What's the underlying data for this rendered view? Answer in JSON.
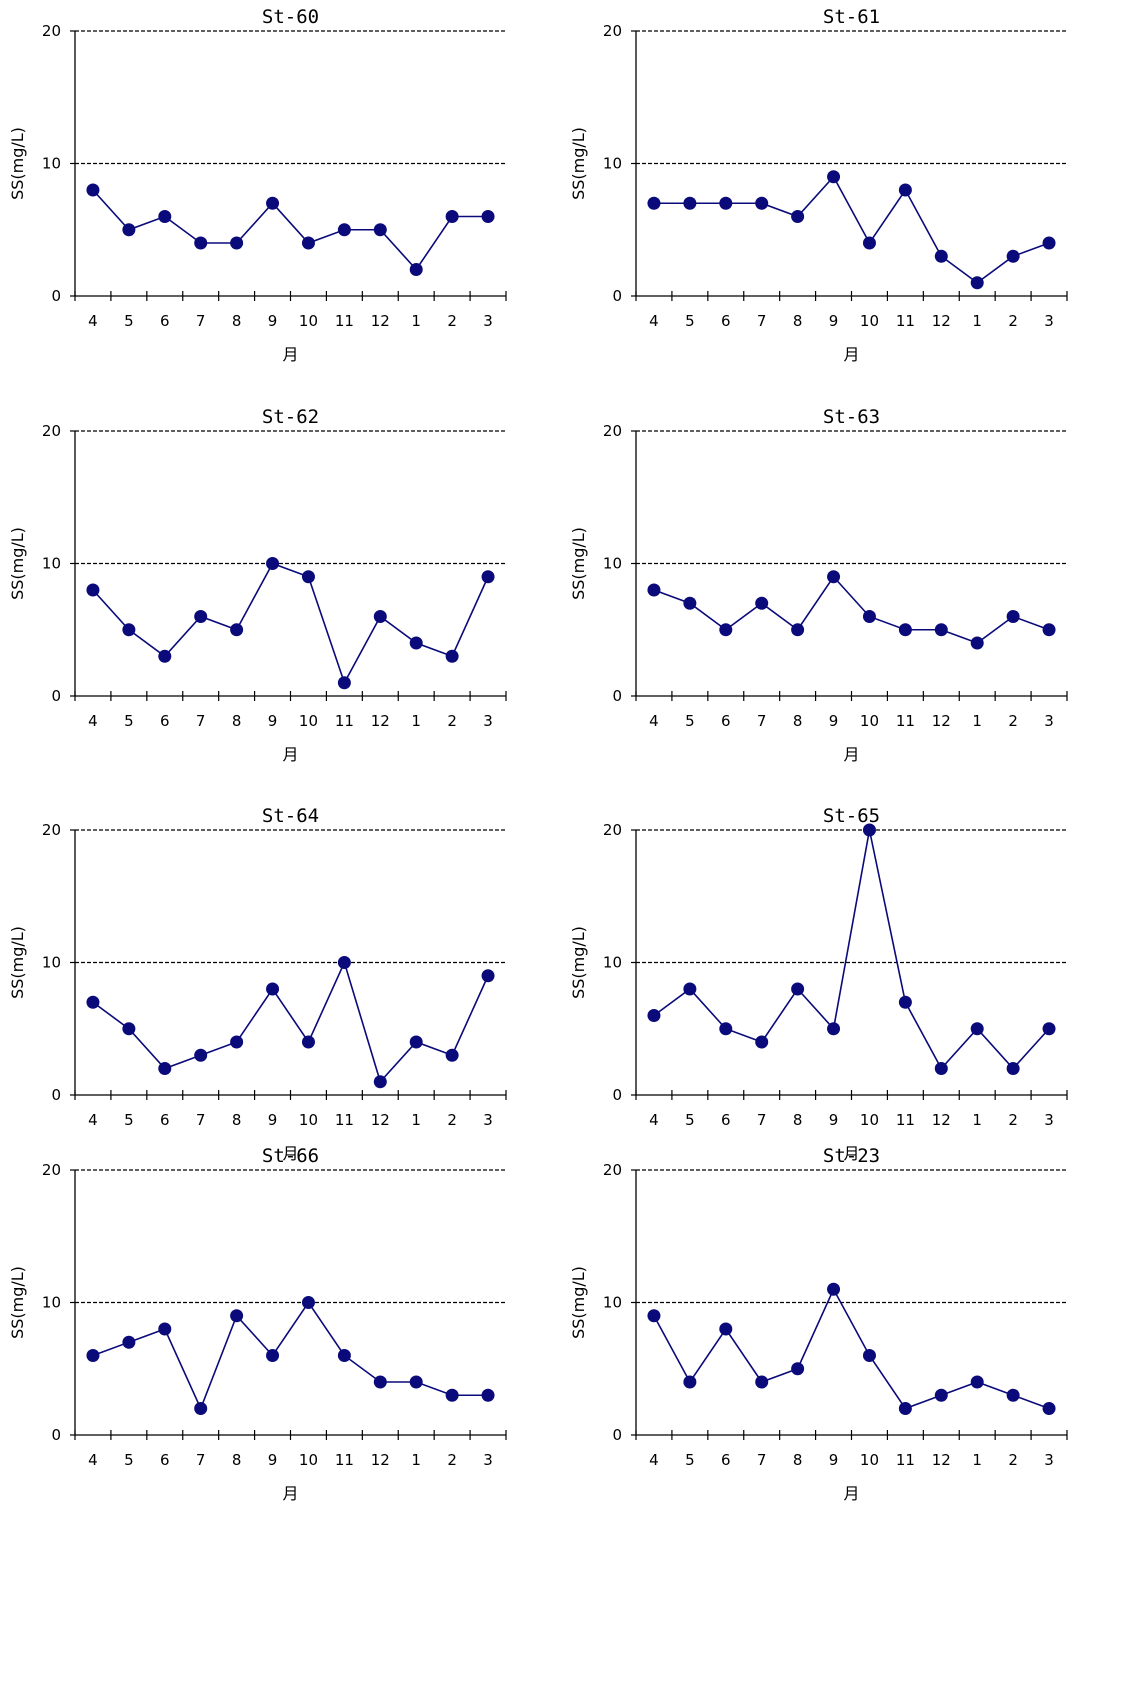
{
  "chart_data": [
    {
      "type": "line",
      "title": "St-60",
      "xlabel": "月",
      "ylabel": "SS(mg/L)",
      "ylim": [
        0,
        20
      ],
      "yticks": [
        0,
        10,
        20
      ],
      "reference_lines": [
        10,
        20
      ],
      "categories": [
        "4",
        "5",
        "6",
        "7",
        "8",
        "9",
        "10",
        "11",
        "12",
        "1",
        "2",
        "3"
      ],
      "values": [
        8,
        5,
        6,
        4,
        4,
        7,
        4,
        5,
        5,
        2,
        6,
        6
      ],
      "series_color": "#0a0a7a",
      "grid": false
    },
    {
      "type": "line",
      "title": "St-61",
      "xlabel": "月",
      "ylabel": "SS(mg/L)",
      "ylim": [
        0,
        20
      ],
      "yticks": [
        0,
        10,
        20
      ],
      "reference_lines": [
        10,
        20
      ],
      "categories": [
        "4",
        "5",
        "6",
        "7",
        "8",
        "9",
        "10",
        "11",
        "12",
        "1",
        "2",
        "3"
      ],
      "values": [
        7,
        7,
        7,
        7,
        6,
        9,
        4,
        8,
        3,
        1,
        3,
        4
      ],
      "series_color": "#0a0a7a",
      "grid": false
    },
    {
      "type": "line",
      "title": "St-62",
      "xlabel": "月",
      "ylabel": "SS(mg/L)",
      "ylim": [
        0,
        20
      ],
      "yticks": [
        0,
        10,
        20
      ],
      "reference_lines": [
        10,
        20
      ],
      "categories": [
        "4",
        "5",
        "6",
        "7",
        "8",
        "9",
        "10",
        "11",
        "12",
        "1",
        "2",
        "3"
      ],
      "values": [
        8,
        5,
        3,
        6,
        5,
        10,
        9,
        1,
        6,
        4,
        3,
        9
      ],
      "series_color": "#0a0a7a",
      "grid": false
    },
    {
      "type": "line",
      "title": "St-63",
      "xlabel": "月",
      "ylabel": "SS(mg/L)",
      "ylim": [
        0,
        20
      ],
      "yticks": [
        0,
        10,
        20
      ],
      "reference_lines": [
        10,
        20
      ],
      "categories": [
        "4",
        "5",
        "6",
        "7",
        "8",
        "9",
        "10",
        "11",
        "12",
        "1",
        "2",
        "3"
      ],
      "values": [
        8,
        7,
        5,
        7,
        5,
        9,
        6,
        5,
        5,
        4,
        6,
        5
      ],
      "series_color": "#0a0a7a",
      "grid": false
    },
    {
      "type": "line",
      "title": "St-64",
      "xlabel": "月",
      "ylabel": "SS(mg/L)",
      "ylim": [
        0,
        20
      ],
      "yticks": [
        0,
        10,
        20
      ],
      "reference_lines": [
        10,
        20
      ],
      "categories": [
        "4",
        "5",
        "6",
        "7",
        "8",
        "9",
        "10",
        "11",
        "12",
        "1",
        "2",
        "3"
      ],
      "values": [
        7,
        5,
        2,
        3,
        4,
        8,
        4,
        10,
        1,
        4,
        3,
        9
      ],
      "series_color": "#0a0a7a",
      "grid": false
    },
    {
      "type": "line",
      "title": "St-65",
      "xlabel": "月",
      "ylabel": "SS(mg/L)",
      "ylim": [
        0,
        20
      ],
      "yticks": [
        0,
        10,
        20
      ],
      "reference_lines": [
        10,
        20
      ],
      "categories": [
        "4",
        "5",
        "6",
        "7",
        "8",
        "9",
        "10",
        "11",
        "12",
        "1",
        "2",
        "3"
      ],
      "values": [
        6,
        8,
        5,
        4,
        8,
        5,
        20,
        7,
        2,
        5,
        2,
        5
      ],
      "series_color": "#0a0a7a",
      "grid": false
    },
    {
      "type": "line",
      "title": "St-66",
      "xlabel": "月",
      "ylabel": "SS(mg/L)",
      "ylim": [
        0,
        20
      ],
      "yticks": [
        0,
        10,
        20
      ],
      "reference_lines": [
        10,
        20
      ],
      "categories": [
        "4",
        "5",
        "6",
        "7",
        "8",
        "9",
        "10",
        "11",
        "12",
        "1",
        "2",
        "3"
      ],
      "values": [
        6,
        7,
        8,
        2,
        9,
        6,
        10,
        6,
        4,
        4,
        3,
        3
      ],
      "series_color": "#0a0a7a",
      "grid": false
    },
    {
      "type": "line",
      "title": "St-23",
      "xlabel": "月",
      "ylabel": "SS(mg/L)",
      "ylim": [
        0,
        20
      ],
      "yticks": [
        0,
        10,
        20
      ],
      "reference_lines": [
        10,
        20
      ],
      "categories": [
        "4",
        "5",
        "6",
        "7",
        "8",
        "9",
        "10",
        "11",
        "12",
        "1",
        "2",
        "3"
      ],
      "values": [
        9,
        4,
        8,
        4,
        5,
        11,
        6,
        2,
        3,
        4,
        3,
        2
      ],
      "series_color": "#0a0a7a",
      "grid": false
    }
  ]
}
